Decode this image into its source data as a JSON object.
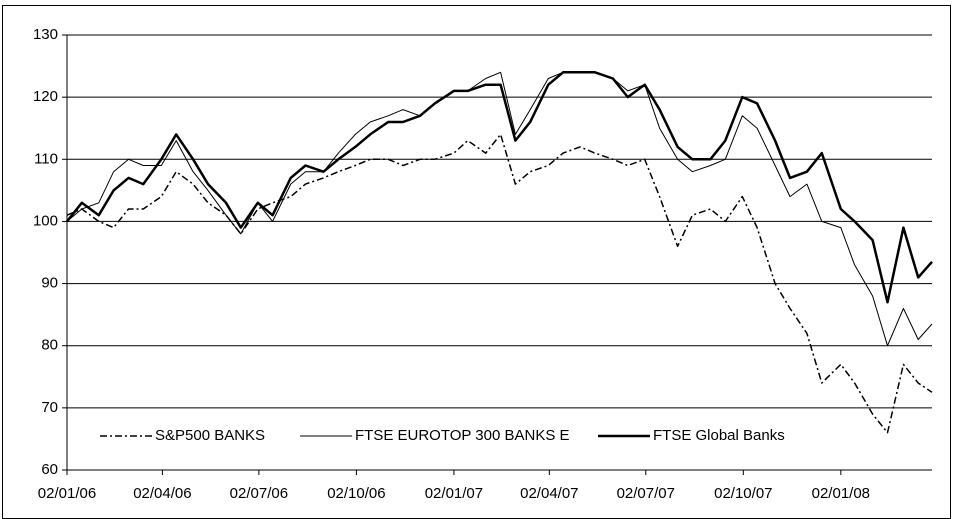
{
  "chart_data": {
    "type": "line",
    "x": [
      "2006-01-02",
      "2006-01-16",
      "2006-02-01",
      "2006-02-15",
      "2006-03-01",
      "2006-03-15",
      "2006-04-01",
      "2006-04-15",
      "2006-05-01",
      "2006-05-15",
      "2006-06-01",
      "2006-06-15",
      "2006-07-01",
      "2006-07-15",
      "2006-08-01",
      "2006-08-15",
      "2006-09-01",
      "2006-09-15",
      "2006-10-01",
      "2006-10-15",
      "2006-11-01",
      "2006-11-15",
      "2006-12-01",
      "2006-12-15",
      "2007-01-02",
      "2007-01-15",
      "2007-02-01",
      "2007-02-15",
      "2007-03-01",
      "2007-03-15",
      "2007-04-01",
      "2007-04-15",
      "2007-05-01",
      "2007-05-15",
      "2007-06-01",
      "2007-06-15",
      "2007-07-01",
      "2007-07-15",
      "2007-08-01",
      "2007-08-15",
      "2007-09-01",
      "2007-09-15",
      "2007-10-01",
      "2007-10-15",
      "2007-11-01",
      "2007-11-15",
      "2007-12-01",
      "2007-12-15",
      "2008-01-02",
      "2008-01-15",
      "2008-02-01",
      "2008-02-15",
      "2008-03-01",
      "2008-03-15",
      "2008-03-28"
    ],
    "series": [
      {
        "name": "S&P500 BANKS",
        "color": "#000000",
        "style": "dash-dot",
        "width": 1.5,
        "values": [
          101,
          102,
          100,
          99,
          102,
          102,
          104,
          108,
          106,
          103,
          101,
          98,
          102,
          103,
          104,
          106,
          107,
          108,
          109,
          110,
          110,
          109,
          110,
          110,
          111,
          113,
          111,
          114,
          106,
          108,
          109,
          111,
          112,
          111,
          110,
          109,
          110,
          104,
          96,
          101,
          102,
          100,
          104,
          99,
          90,
          86,
          82,
          74,
          77,
          74,
          69,
          66,
          77,
          74,
          72.5
        ]
      },
      {
        "name": "FTSE EUROTOP 300 BANKS E",
        "color": "#000000",
        "style": "solid",
        "width": 1,
        "values": [
          100,
          102,
          103,
          108,
          110,
          109,
          109,
          113,
          108,
          105,
          101,
          98,
          103,
          100,
          106,
          108,
          108,
          111,
          114,
          116,
          117,
          118,
          117,
          119,
          121,
          121,
          123,
          124,
          114,
          118,
          123,
          124,
          124,
          124,
          123,
          121,
          122,
          115,
          110,
          108,
          109,
          110,
          117,
          115,
          109,
          104,
          106,
          100,
          99,
          93,
          88,
          80,
          86,
          81,
          83.5
        ]
      },
      {
        "name": "FTSE Global Banks",
        "color": "#000000",
        "style": "solid",
        "width": 2.5,
        "values": [
          100,
          103,
          101,
          105,
          107,
          106,
          110,
          114,
          110,
          106,
          103,
          99,
          103,
          101,
          107,
          109,
          108,
          110,
          112,
          114,
          116,
          116,
          117,
          119,
          121,
          121,
          122,
          122,
          113,
          116,
          122,
          124,
          124,
          124,
          123,
          120,
          122,
          118,
          112,
          110,
          110,
          113,
          120,
          119,
          113,
          107,
          108,
          111,
          102,
          100,
          97,
          87,
          99,
          91,
          93.5
        ]
      }
    ],
    "xlim": [
      "2006-01-02",
      "2008-03-28"
    ],
    "xticks": [
      {
        "value": "2006-01-02",
        "label": "02/01/06"
      },
      {
        "value": "2006-04-02",
        "label": "02/04/06"
      },
      {
        "value": "2006-07-02",
        "label": "02/07/06"
      },
      {
        "value": "2006-10-02",
        "label": "02/10/06"
      },
      {
        "value": "2007-01-02",
        "label": "02/01/07"
      },
      {
        "value": "2007-04-02",
        "label": "02/04/07"
      },
      {
        "value": "2007-07-02",
        "label": "02/07/07"
      },
      {
        "value": "2007-10-02",
        "label": "02/10/07"
      },
      {
        "value": "2008-01-02",
        "label": "02/01/08"
      }
    ],
    "ylim": [
      60,
      130
    ],
    "yticks": [
      60,
      70,
      80,
      90,
      100,
      110,
      120,
      130
    ],
    "grid": true,
    "legend": "bottom"
  }
}
